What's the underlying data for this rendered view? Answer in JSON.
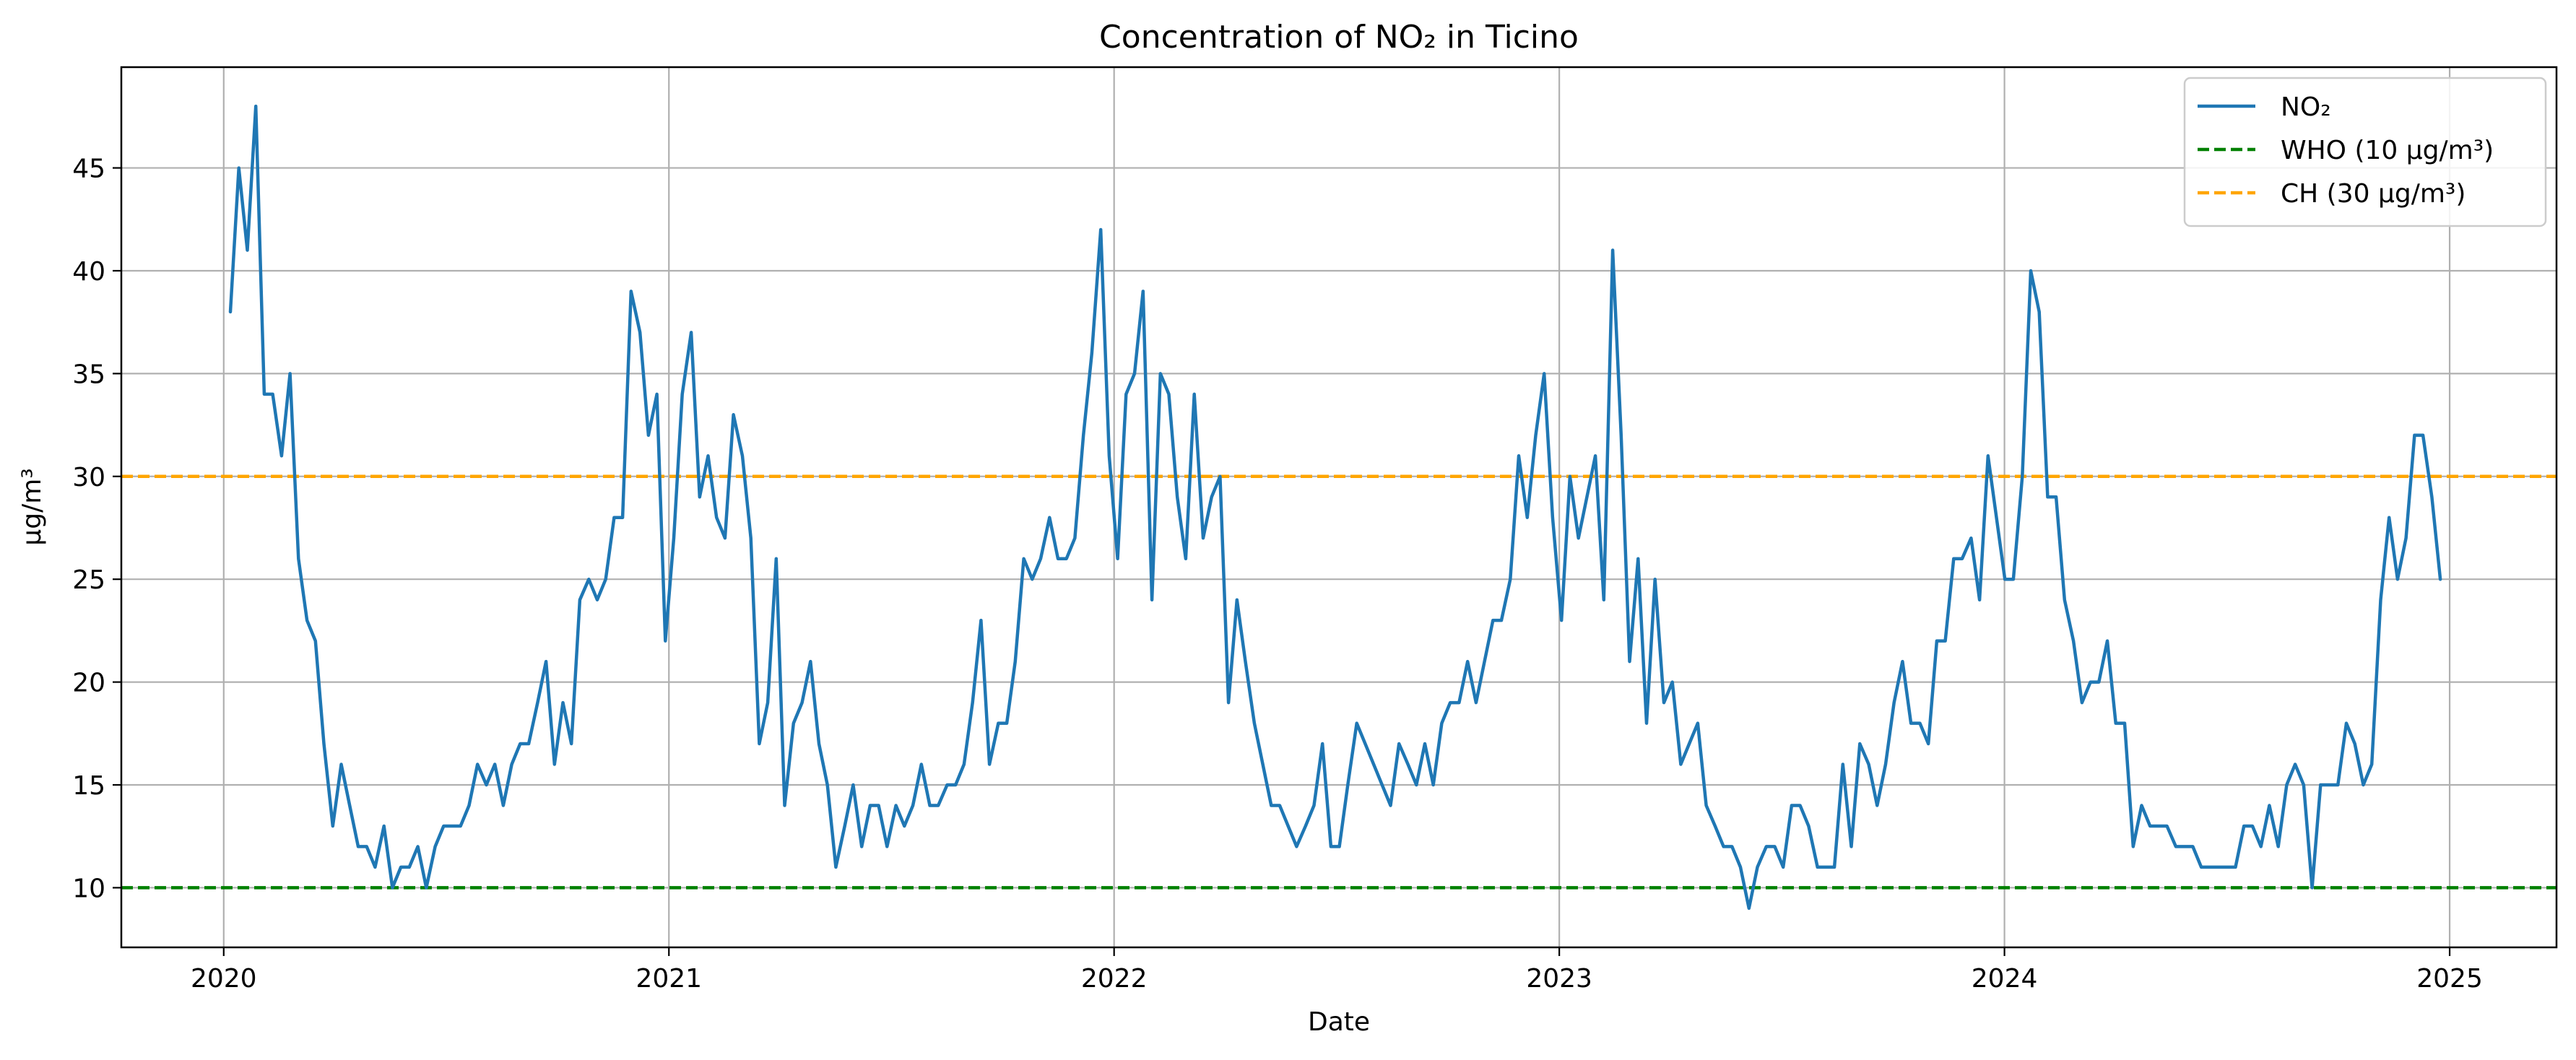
{
  "chart_data": {
    "type": "line",
    "title": "Concentration of NO₂ in Ticino",
    "xlabel": "Date",
    "ylabel": "µg/m³",
    "xlim": [
      2019.77,
      2025.24
    ],
    "ylim": [
      7.1,
      49.9
    ],
    "x_ticks": [
      2020,
      2021,
      2022,
      2023,
      2024,
      2025
    ],
    "x_tick_labels": [
      "2020",
      "2021",
      "2022",
      "2023",
      "2024",
      "2025"
    ],
    "y_ticks": [
      10,
      15,
      20,
      25,
      30,
      35,
      40,
      45
    ],
    "y_tick_labels": [
      "10",
      "15",
      "20",
      "25",
      "30",
      "35",
      "40",
      "45"
    ],
    "grid": true,
    "legend_position": "top-right",
    "series": [
      {
        "name": "NO₂",
        "color": "#1f77b4",
        "style": "solid",
        "x": [
          2020.015,
          2020.034,
          2020.053,
          2020.072,
          2020.091,
          2020.11,
          2020.13,
          2020.149,
          2020.168,
          2020.187,
          2020.206,
          2020.225,
          2020.245,
          2020.264,
          2020.283,
          2020.302,
          2020.321,
          2020.34,
          2020.36,
          2020.379,
          2020.398,
          2020.417,
          2020.436,
          2020.455,
          2020.475,
          2020.494,
          2020.513,
          2020.532,
          2020.551,
          2020.57,
          2020.59,
          2020.609,
          2020.628,
          2020.647,
          2020.666,
          2020.685,
          2020.705,
          2020.724,
          2020.743,
          2020.762,
          2020.781,
          2020.8,
          2020.82,
          2020.839,
          2020.858,
          2020.877,
          2020.896,
          2020.915,
          2020.935,
          2020.954,
          2020.973,
          2020.992,
          2021.011,
          2021.03,
          2021.05,
          2021.069,
          2021.088,
          2021.107,
          2021.126,
          2021.145,
          2021.165,
          2021.184,
          2021.203,
          2021.222,
          2021.241,
          2021.26,
          2021.28,
          2021.299,
          2021.318,
          2021.337,
          2021.356,
          2021.375,
          2021.395,
          2021.414,
          2021.433,
          2021.452,
          2021.471,
          2021.49,
          2021.51,
          2021.529,
          2021.548,
          2021.567,
          2021.586,
          2021.605,
          2021.625,
          2021.644,
          2021.663,
          2021.682,
          2021.701,
          2021.72,
          2021.74,
          2021.759,
          2021.778,
          2021.797,
          2021.816,
          2021.835,
          2021.855,
          2021.874,
          2021.893,
          2021.912,
          2021.931,
          2021.95,
          2021.97,
          2021.989,
          2022.008,
          2022.027,
          2022.046,
          2022.065,
          2022.085,
          2022.104,
          2022.123,
          2022.142,
          2022.161,
          2022.18,
          2022.2,
          2022.219,
          2022.238,
          2022.257,
          2022.276,
          2022.295,
          2022.315,
          2022.334,
          2022.353,
          2022.372,
          2022.391,
          2022.41,
          2022.43,
          2022.449,
          2022.468,
          2022.487,
          2022.506,
          2022.525,
          2022.545,
          2022.564,
          2022.583,
          2022.602,
          2022.621,
          2022.64,
          2022.66,
          2022.679,
          2022.698,
          2022.717,
          2022.736,
          2022.755,
          2022.775,
          2022.794,
          2022.813,
          2022.832,
          2022.851,
          2022.87,
          2022.89,
          2022.909,
          2022.928,
          2022.947,
          2022.966,
          2022.985,
          2023.005,
          2023.024,
          2023.043,
          2023.062,
          2023.081,
          2023.1,
          2023.12,
          2023.139,
          2023.158,
          2023.177,
          2023.196,
          2023.215,
          2023.235,
          2023.254,
          2023.273,
          2023.292,
          2023.311,
          2023.33,
          2023.35,
          2023.369,
          2023.388,
          2023.407,
          2023.426,
          2023.445,
          2023.465,
          2023.484,
          2023.503,
          2023.522,
          2023.541,
          2023.56,
          2023.58,
          2023.599,
          2023.618,
          2023.637,
          2023.656,
          2023.675,
          2023.695,
          2023.714,
          2023.733,
          2023.752,
          2023.771,
          2023.79,
          2023.81,
          2023.829,
          2023.848,
          2023.867,
          2023.886,
          2023.905,
          2023.925,
          2023.944,
          2023.963,
          2023.982,
          2024.001,
          2024.02,
          2024.04,
          2024.059,
          2024.078,
          2024.097,
          2024.116,
          2024.135,
          2024.155,
          2024.174,
          2024.193,
          2024.212,
          2024.231,
          2024.25,
          2024.27,
          2024.289,
          2024.308,
          2024.327,
          2024.346,
          2024.365,
          2024.385,
          2024.404,
          2024.423,
          2024.442,
          2024.461,
          2024.48,
          2024.5,
          2024.519,
          2024.538,
          2024.557,
          2024.576,
          2024.595,
          2024.615,
          2024.634,
          2024.653,
          2024.672,
          2024.691,
          2024.71,
          2024.73,
          2024.749,
          2024.768,
          2024.787,
          2024.806,
          2024.825,
          2024.845,
          2024.864,
          2024.883,
          2024.902,
          2024.921,
          2024.94,
          2024.96,
          2024.979
        ],
        "y": [
          38,
          45,
          41,
          48,
          34,
          34,
          31,
          35,
          26,
          23,
          22,
          17,
          13,
          16,
          14,
          12,
          12,
          11,
          13,
          10,
          11,
          11,
          12,
          10,
          12,
          13,
          13,
          13,
          14,
          16,
          15,
          16,
          14,
          16,
          17,
          17,
          19,
          21,
          16,
          19,
          17,
          24,
          25,
          24,
          25,
          28,
          28,
          39,
          37,
          32,
          34,
          22,
          27,
          34,
          37,
          29,
          31,
          28,
          27,
          33,
          31,
          27,
          17,
          19,
          26,
          14,
          18,
          19,
          21,
          17,
          15,
          11,
          13,
          15,
          12,
          14,
          14,
          12,
          14,
          13,
          14,
          16,
          14,
          14,
          15,
          15,
          16,
          19,
          23,
          16,
          18,
          18,
          21,
          26,
          25,
          26,
          28,
          26,
          26,
          27,
          32,
          36,
          42,
          31,
          26,
          34,
          35,
          39,
          24,
          35,
          34,
          29,
          26,
          34,
          27,
          29,
          30,
          19,
          24,
          21,
          18,
          16,
          14,
          14,
          13,
          12,
          13,
          14,
          17,
          12,
          12,
          15,
          18,
          17,
          16,
          15,
          14,
          17,
          16,
          15,
          17,
          15,
          18,
          19,
          19,
          21,
          19,
          21,
          23,
          23,
          25,
          31,
          28,
          32,
          35,
          28,
          23,
          30,
          27,
          29,
          31,
          24,
          41,
          32,
          21,
          26,
          18,
          25,
          19,
          20,
          16,
          17,
          18,
          14,
          13,
          12,
          12,
          11,
          9,
          11,
          12,
          12,
          11,
          14,
          14,
          13,
          11,
          11,
          11,
          16,
          12,
          17,
          16,
          14,
          16,
          19,
          21,
          18,
          18,
          17,
          22,
          22,
          26,
          26,
          27,
          24,
          31,
          28,
          25,
          25,
          30,
          40,
          38,
          29,
          29,
          24,
          22,
          19,
          20,
          20,
          22,
          18,
          18,
          12,
          14,
          13,
          13,
          13,
          12,
          12,
          12,
          11,
          11,
          11,
          11,
          11,
          13,
          13,
          12,
          14,
          12,
          15,
          16,
          15,
          10,
          15,
          15,
          15,
          18,
          17,
          15,
          16,
          24,
          28,
          25,
          27,
          32,
          32,
          29,
          25
        ]
      },
      {
        "name": "WHO (10 µg/m³)",
        "color": "#008000",
        "style": "dashed",
        "y_constant": 10
      },
      {
        "name": "CH (30 µg/m³)",
        "color": "#ffa500",
        "style": "dashed",
        "y_constant": 30
      }
    ]
  }
}
